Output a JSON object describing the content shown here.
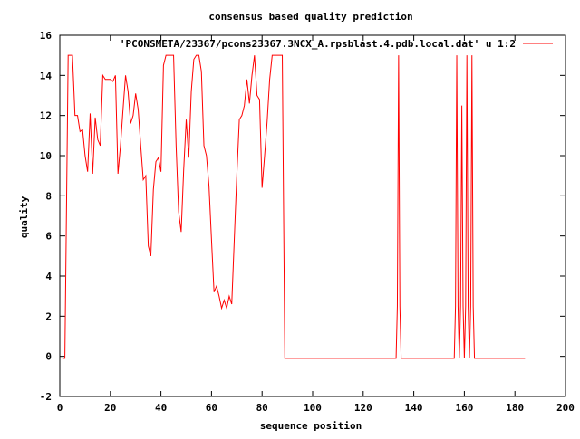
{
  "chart_data": {
    "type": "line",
    "title": "consensus based quality prediction",
    "xlabel": "sequence position",
    "ylabel": "quality",
    "xlim": [
      0,
      200
    ],
    "ylim": [
      -2,
      16
    ],
    "x_ticks": [
      0,
      20,
      40,
      60,
      80,
      100,
      120,
      140,
      160,
      180,
      200
    ],
    "y_ticks": [
      -2,
      0,
      2,
      4,
      6,
      8,
      10,
      12,
      14,
      16
    ],
    "grid": false,
    "legend": "top-right",
    "series": [
      {
        "name": "'PCONSMETA/23367/pcons23367.3NCX_A.rpsblast.4.pdb.local.dat' u 1:2",
        "color": "#ff0000",
        "points": [
          [
            1,
            -0.1
          ],
          [
            2,
            -0.1
          ],
          [
            3,
            11.5
          ],
          [
            3.3,
            15.0
          ],
          [
            4,
            15.0
          ],
          [
            5,
            15.0
          ],
          [
            6,
            12.0
          ],
          [
            7,
            12.0
          ],
          [
            8,
            11.2
          ],
          [
            9,
            11.3
          ],
          [
            10,
            10.0
          ],
          [
            11,
            9.2
          ],
          [
            12,
            12.1
          ],
          [
            13,
            9.1
          ],
          [
            14,
            11.9
          ],
          [
            15,
            10.8
          ],
          [
            16,
            10.5
          ],
          [
            17,
            14.0
          ],
          [
            18,
            13.8
          ],
          [
            19,
            13.8
          ],
          [
            20,
            13.8
          ],
          [
            21,
            13.7
          ],
          [
            22,
            14.0
          ],
          [
            23,
            9.1
          ],
          [
            24,
            10.5
          ],
          [
            25,
            12.3
          ],
          [
            26,
            14.0
          ],
          [
            27,
            13.2
          ],
          [
            28,
            11.6
          ],
          [
            29,
            12.0
          ],
          [
            30,
            13.1
          ],
          [
            31,
            12.3
          ],
          [
            32,
            10.5
          ],
          [
            33,
            8.8
          ],
          [
            34,
            9.0
          ],
          [
            35,
            5.5
          ],
          [
            36,
            5.0
          ],
          [
            37,
            8.3
          ],
          [
            38,
            9.7
          ],
          [
            39,
            9.9
          ],
          [
            40,
            9.2
          ],
          [
            41,
            14.5
          ],
          [
            42,
            15.0
          ],
          [
            43,
            15.0
          ],
          [
            44,
            15.0
          ],
          [
            45,
            15.0
          ],
          [
            46,
            10.5
          ],
          [
            47,
            7.2
          ],
          [
            48,
            6.2
          ],
          [
            49,
            9.3
          ],
          [
            50,
            11.8
          ],
          [
            51,
            9.9
          ],
          [
            52,
            13.2
          ],
          [
            53,
            14.8
          ],
          [
            54,
            15.0
          ],
          [
            55,
            15.0
          ],
          [
            56,
            14.2
          ],
          [
            57,
            10.5
          ],
          [
            58,
            10.0
          ],
          [
            59,
            8.5
          ],
          [
            60,
            5.8
          ],
          [
            61,
            3.2
          ],
          [
            62,
            3.5
          ],
          [
            63,
            3.0
          ],
          [
            64,
            2.4
          ],
          [
            65,
            2.8
          ],
          [
            66,
            2.4
          ],
          [
            67,
            3.0
          ],
          [
            68,
            2.6
          ],
          [
            69,
            5.8
          ],
          [
            70,
            9.0
          ],
          [
            71,
            11.8
          ],
          [
            72,
            12.0
          ],
          [
            73,
            12.5
          ],
          [
            74,
            13.8
          ],
          [
            75,
            12.6
          ],
          [
            76,
            14.0
          ],
          [
            77,
            15.0
          ],
          [
            78,
            13.0
          ],
          [
            79,
            12.8
          ],
          [
            80,
            8.4
          ],
          [
            81,
            10.0
          ],
          [
            82,
            11.7
          ],
          [
            83,
            13.8
          ],
          [
            84,
            15.0
          ],
          [
            85,
            15.0
          ],
          [
            86,
            15.0
          ],
          [
            87,
            15.0
          ],
          [
            88,
            15.0
          ],
          [
            89,
            -0.1
          ],
          [
            90,
            -0.1
          ],
          [
            133,
            -0.1
          ],
          [
            133.5,
            2.5
          ],
          [
            134,
            15.0
          ],
          [
            134.5,
            2.5
          ],
          [
            135,
            -0.1
          ],
          [
            156,
            -0.1
          ],
          [
            156.5,
            2.5
          ],
          [
            157,
            15.0
          ],
          [
            157.5,
            2.5
          ],
          [
            158,
            -0.1
          ],
          [
            158.5,
            2.5
          ],
          [
            159,
            12.5
          ],
          [
            159.5,
            2.5
          ],
          [
            160,
            -0.1
          ],
          [
            160.5,
            2.5
          ],
          [
            161,
            15.0
          ],
          [
            161.5,
            2.5
          ],
          [
            162,
            -0.1
          ],
          [
            162.5,
            2.5
          ],
          [
            163,
            15.0
          ],
          [
            163.5,
            2.5
          ],
          [
            164,
            -0.1
          ],
          [
            184,
            -0.1
          ]
        ]
      }
    ]
  }
}
